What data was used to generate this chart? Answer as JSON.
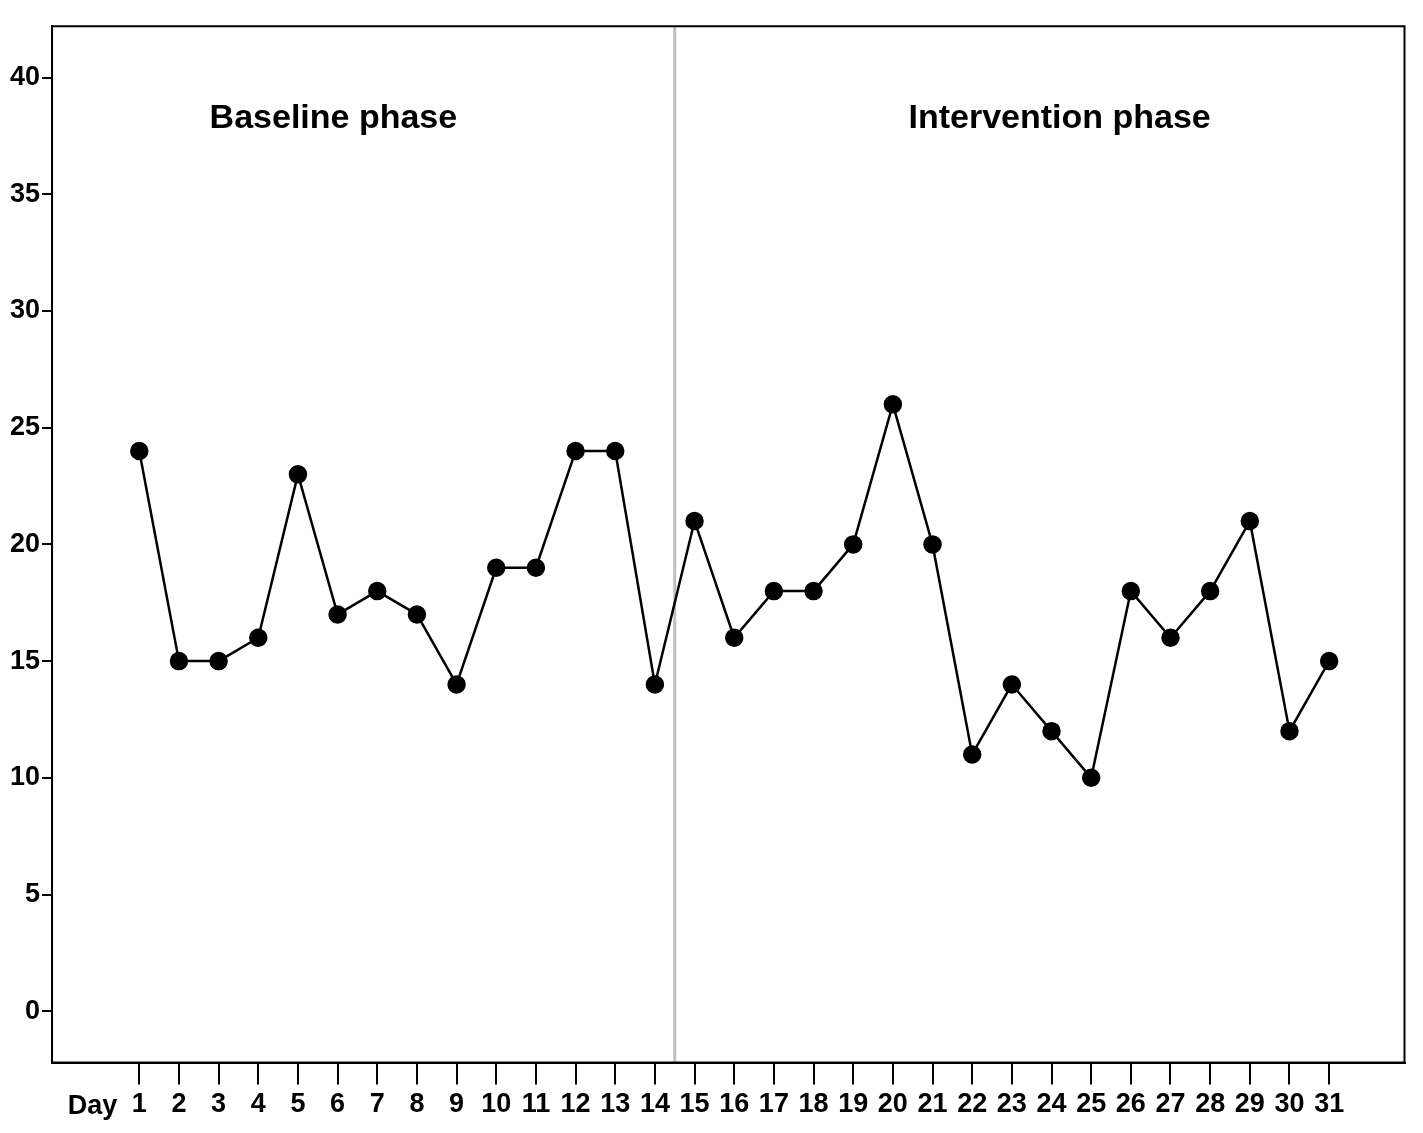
{
  "chart_data": {
    "type": "line",
    "xlabel": "Day",
    "x": [
      1,
      2,
      3,
      4,
      5,
      6,
      7,
      8,
      9,
      10,
      11,
      12,
      13,
      14,
      15,
      16,
      17,
      18,
      19,
      20,
      21,
      22,
      23,
      24,
      25,
      26,
      27,
      28,
      29,
      30,
      31
    ],
    "series": [
      {
        "color": "#000000",
        "values": [
          24,
          15,
          15,
          16,
          23,
          17,
          18,
          17,
          14,
          19,
          19,
          24,
          24,
          14,
          21,
          16,
          18,
          18,
          20,
          26,
          20,
          11,
          14,
          12,
          10,
          18,
          16,
          18,
          21,
          12,
          15
        ]
      }
    ],
    "xlim": [
      -1.2,
      32.9
    ],
    "xticks": [
      1,
      2,
      3,
      4,
      5,
      6,
      7,
      8,
      9,
      10,
      11,
      12,
      13,
      14,
      15,
      16,
      17,
      18,
      19,
      20,
      21,
      22,
      23,
      24,
      25,
      26,
      27,
      28,
      29,
      30,
      31
    ],
    "ylim": [
      -2.2,
      42.2
    ],
    "yticks": [
      0,
      5,
      10,
      15,
      20,
      25,
      30,
      35,
      40
    ],
    "ref_lines": [
      {
        "axis": "x",
        "value": 14.5,
        "color": "#c0c0c0"
      }
    ],
    "annotations": [
      "Baseline phase",
      "Intervention phase"
    ],
    "grid": false,
    "legend": false,
    "marker": "circle",
    "line_style": "solid"
  }
}
